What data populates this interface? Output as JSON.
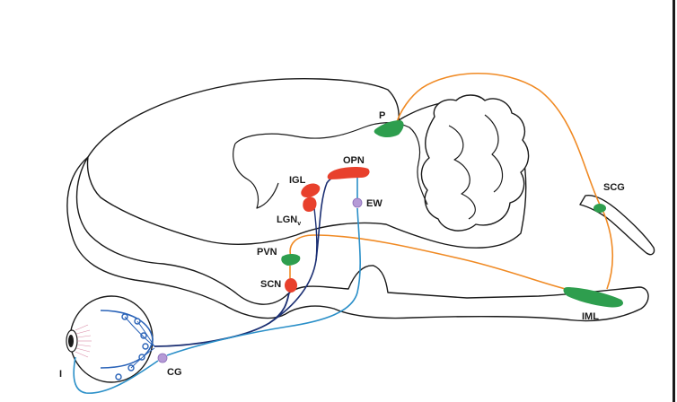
{
  "labels": {
    "p": "P",
    "opn": "OPN",
    "igl": "IGL",
    "lgn": "LGN",
    "lgn_sub": "v",
    "ew": "EW",
    "pvn": "PVN",
    "scn": "SCN",
    "scg": "SCG",
    "iml": "IML",
    "cg": "CG",
    "iris": "I"
  },
  "colors": {
    "outline": "#1a1a1a",
    "red_nuclei": "#e8402c",
    "green_nuclei": "#2e9e4e",
    "violet_ganglia": "#b59ad6",
    "blue_retina": "#2a63b8",
    "orange_path": "#f08a24",
    "navy_path": "#1b2f73",
    "cyan_path": "#2a8fc8"
  }
}
